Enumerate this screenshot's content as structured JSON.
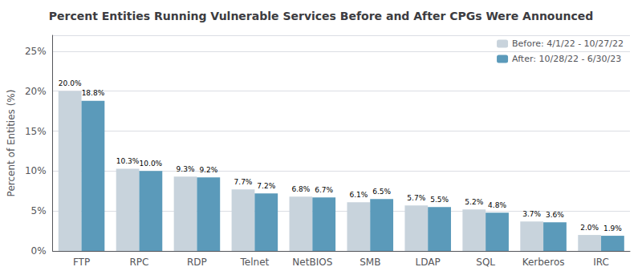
{
  "chart_data": {
    "type": "bar",
    "title": "Percent Entities Running Vulnerable Services Before and After CPGs Were Announced",
    "categories": [
      "FTP",
      "RPC",
      "RDP",
      "Telnet",
      "NetBIOS",
      "SMB",
      "LDAP",
      "SQL",
      "Kerberos",
      "IRC"
    ],
    "series": [
      {
        "name": "Before: 4/1/22 - 10/27/22",
        "color": "#c8d3dc",
        "values": [
          20.0,
          10.3,
          9.3,
          7.7,
          6.8,
          6.1,
          5.7,
          5.2,
          3.7,
          2.0
        ],
        "value_labels": [
          "20.0%",
          "10.3%",
          "9.3%",
          "7.7%",
          "6.8%",
          "6.1%",
          "5.7%",
          "5.2%",
          "3.7%",
          "2.0%"
        ]
      },
      {
        "name": "After: 10/28/22 - 6/30/23",
        "color": "#5b9aba",
        "values": [
          18.8,
          10.0,
          9.2,
          7.2,
          6.7,
          6.5,
          5.5,
          4.8,
          3.6,
          1.9
        ],
        "value_labels": [
          "18.8%",
          "10.0%",
          "9.2%",
          "7.2%",
          "6.7%",
          "6.5%",
          "5.5%",
          "4.8%",
          "3.6%",
          "1.9%"
        ]
      }
    ],
    "ylabel": "Percent of Entities (%)",
    "ylim": [
      0,
      27
    ],
    "yticks": [
      {
        "value": 0,
        "label": "0%"
      },
      {
        "value": 5,
        "label": "5%"
      },
      {
        "value": 10,
        "label": "10%"
      },
      {
        "value": 15,
        "label": "15%"
      },
      {
        "value": 20,
        "label": "20%"
      },
      {
        "value": 25,
        "label": "25%"
      }
    ],
    "grid": true,
    "legend": "upper right",
    "data_labels": true
  }
}
